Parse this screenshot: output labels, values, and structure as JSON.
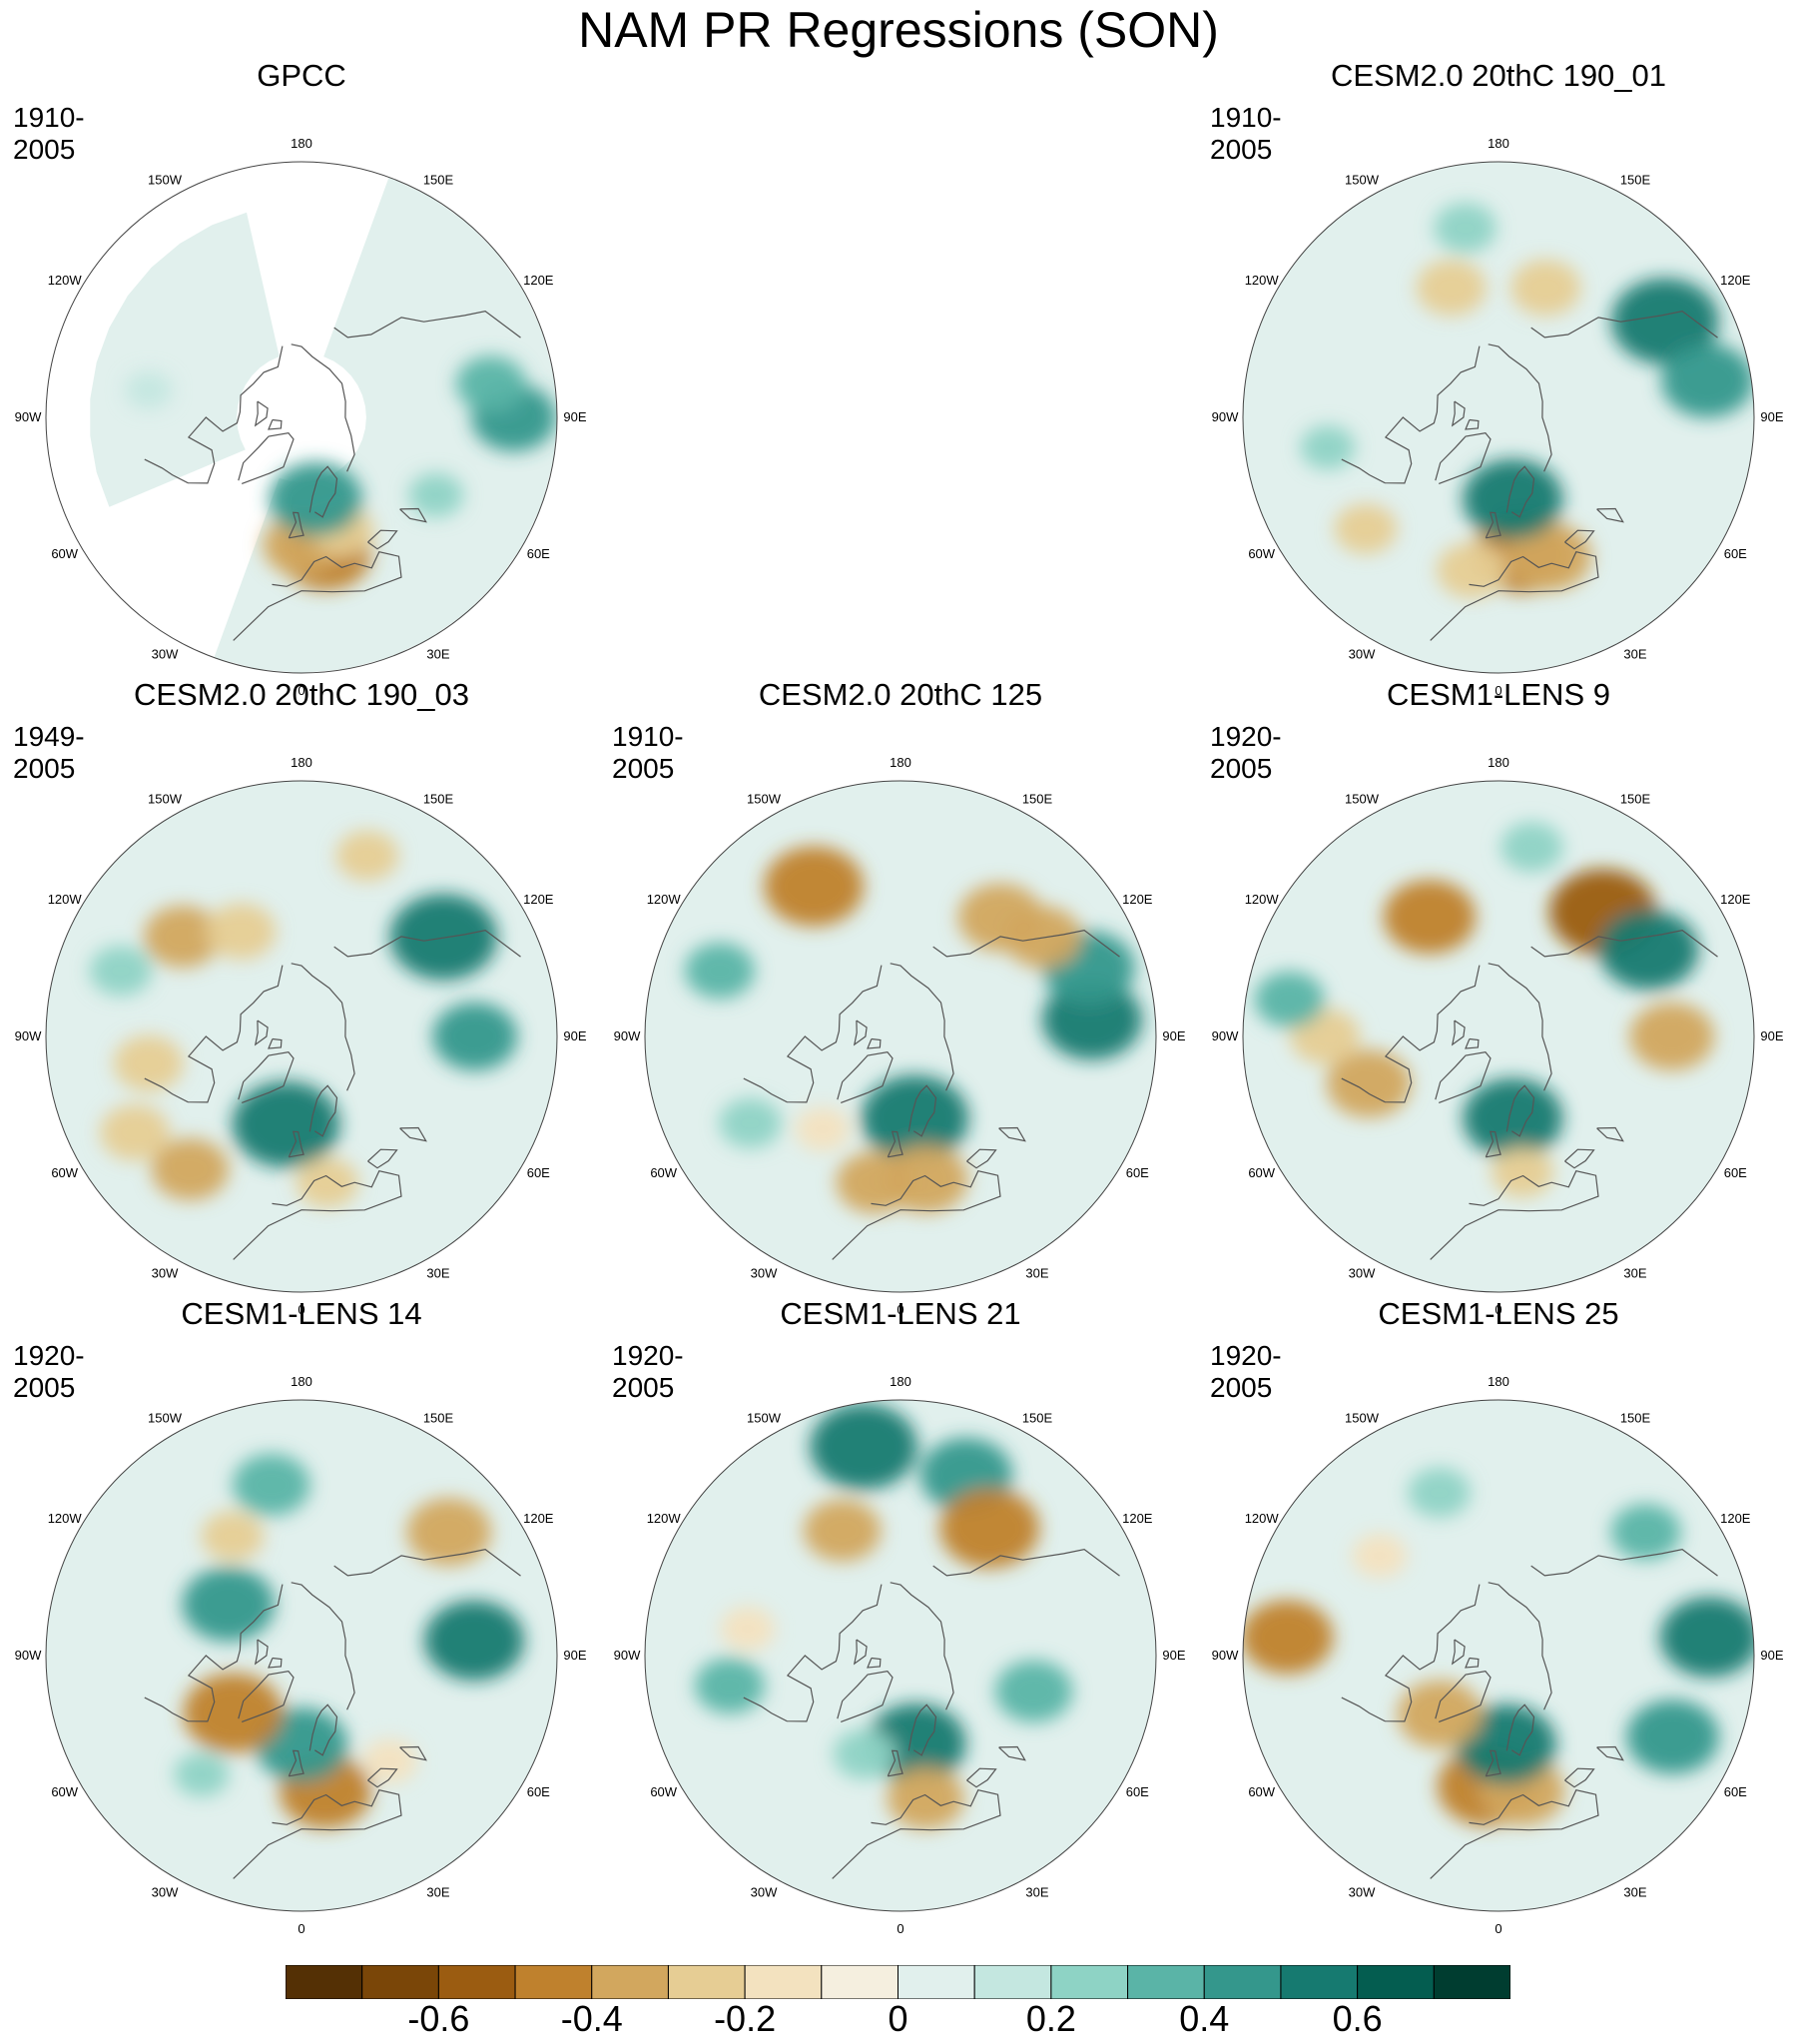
{
  "chart_data": {
    "type": "polar-stereographic contour map panels",
    "title": "NAM PR Regressions (SON)",
    "variable": "precipitation regression onto NAM",
    "longitude_labels": [
      "180",
      "150E",
      "120E",
      "90E",
      "60E",
      "30E",
      "0",
      "30W",
      "60W",
      "90W",
      "120W",
      "150W"
    ],
    "panels": [
      {
        "id": "gpcc",
        "title": "GPCC",
        "period": "1910-2005",
        "land_only": true,
        "features": [
          {
            "lon": 10,
            "lat": 45,
            "value": -0.45
          },
          {
            "lon": 0,
            "lat": 48,
            "value": -0.35
          },
          {
            "lon": 20,
            "lat": 50,
            "value": -0.25
          },
          {
            "lon": 10,
            "lat": 62,
            "value": 0.45
          },
          {
            "lon": 90,
            "lat": 25,
            "value": 0.4
          },
          {
            "lon": 100,
            "lat": 30,
            "value": 0.3
          },
          {
            "lon": 60,
            "lat": 40,
            "value": 0.2
          },
          {
            "lon": -100,
            "lat": 40,
            "value": 0.15
          }
        ]
      },
      {
        "id": "cesm2-190-01",
        "title": "CESM2.0 20thC 190_01",
        "period": "1910-2005",
        "land_only": false,
        "features": [
          {
            "lon": 10,
            "lat": 45,
            "value": -0.5
          },
          {
            "lon": 20,
            "lat": 42,
            "value": -0.4
          },
          {
            "lon": -10,
            "lat": 40,
            "value": -0.3
          },
          {
            "lon": 10,
            "lat": 62,
            "value": 0.5
          },
          {
            "lon": -160,
            "lat": 45,
            "value": -0.3
          },
          {
            "lon": 120,
            "lat": 30,
            "value": 0.55
          },
          {
            "lon": 100,
            "lat": 25,
            "value": 0.45
          },
          {
            "lon": 160,
            "lat": 45,
            "value": -0.3
          },
          {
            "lon": -170,
            "lat": 30,
            "value": 0.25
          },
          {
            "lon": -80,
            "lat": 35,
            "value": 0.2
          },
          {
            "lon": -50,
            "lat": 35,
            "value": -0.25
          }
        ]
      },
      {
        "id": "cesm2-190-03",
        "title": "CESM2.0 20thC 190_03",
        "period": "1949-2005",
        "land_only": false,
        "features": [
          {
            "lon": -10,
            "lat": 60,
            "value": 0.55
          },
          {
            "lon": -40,
            "lat": 35,
            "value": -0.35
          },
          {
            "lon": -60,
            "lat": 30,
            "value": -0.3
          },
          {
            "lon": 10,
            "lat": 42,
            "value": -0.25
          },
          {
            "lon": 125,
            "lat": 35,
            "value": 0.55
          },
          {
            "lon": -130,
            "lat": 40,
            "value": -0.35
          },
          {
            "lon": -150,
            "lat": 50,
            "value": -0.3
          },
          {
            "lon": 90,
            "lat": 35,
            "value": 0.4
          },
          {
            "lon": -80,
            "lat": 40,
            "value": -0.3
          },
          {
            "lon": -110,
            "lat": 30,
            "value": 0.25
          },
          {
            "lon": 160,
            "lat": 30,
            "value": -0.25
          }
        ]
      },
      {
        "id": "cesm2-125",
        "title": "CESM2.0 20thC 125",
        "period": "1910-2005",
        "land_only": false,
        "features": [
          {
            "lon": 10,
            "lat": 62,
            "value": 0.55
          },
          {
            "lon": 10,
            "lat": 43,
            "value": -0.4
          },
          {
            "lon": -10,
            "lat": 42,
            "value": -0.35
          },
          {
            "lon": -150,
            "lat": 35,
            "value": -0.5
          },
          {
            "lon": 95,
            "lat": 30,
            "value": 0.5
          },
          {
            "lon": 110,
            "lat": 28,
            "value": 0.45
          },
          {
            "lon": 140,
            "lat": 40,
            "value": -0.4
          },
          {
            "lon": 125,
            "lat": 35,
            "value": -0.35
          },
          {
            "lon": -110,
            "lat": 30,
            "value": 0.3
          },
          {
            "lon": -60,
            "lat": 35,
            "value": 0.25
          },
          {
            "lon": -40,
            "lat": 50,
            "value": -0.2
          }
        ]
      },
      {
        "id": "lens-9",
        "title": "CESM1-LENS 9",
        "period": "1920-2005",
        "land_only": false,
        "features": [
          {
            "lon": 10,
            "lat": 62,
            "value": 0.5
          },
          {
            "lon": -150,
            "lat": 45,
            "value": -0.45
          },
          {
            "lon": 140,
            "lat": 38,
            "value": -0.55
          },
          {
            "lon": 120,
            "lat": 35,
            "value": 0.5
          },
          {
            "lon": -70,
            "lat": 45,
            "value": -0.4
          },
          {
            "lon": -90,
            "lat": 35,
            "value": -0.3
          },
          {
            "lon": 10,
            "lat": 45,
            "value": -0.25
          },
          {
            "lon": 90,
            "lat": 35,
            "value": -0.4
          },
          {
            "lon": -100,
            "lat": 25,
            "value": 0.3
          },
          {
            "lon": 170,
            "lat": 30,
            "value": 0.25
          }
        ]
      },
      {
        "id": "lens-14",
        "title": "CESM1-LENS 14",
        "period": "1920-2005",
        "land_only": false,
        "features": [
          {
            "lon": 10,
            "lat": 45,
            "value": -0.45
          },
          {
            "lon": 0,
            "lat": 60,
            "value": 0.45
          },
          {
            "lon": -50,
            "lat": 60,
            "value": -0.5
          },
          {
            "lon": 130,
            "lat": 30,
            "value": -0.4
          },
          {
            "lon": 95,
            "lat": 35,
            "value": 0.5
          },
          {
            "lon": -170,
            "lat": 35,
            "value": 0.35
          },
          {
            "lon": -150,
            "lat": 45,
            "value": -0.25
          },
          {
            "lon": -125,
            "lat": 60,
            "value": 0.45
          },
          {
            "lon": 40,
            "lat": 45,
            "value": -0.2
          },
          {
            "lon": -40,
            "lat": 40,
            "value": 0.2
          }
        ]
      },
      {
        "id": "lens-21",
        "title": "CESM1-LENS 21",
        "period": "1920-2005",
        "land_only": false,
        "features": [
          {
            "lon": 10,
            "lat": 60,
            "value": 0.5
          },
          {
            "lon": 10,
            "lat": 43,
            "value": -0.35
          },
          {
            "lon": -170,
            "lat": 25,
            "value": 0.55
          },
          {
            "lon": 160,
            "lat": 30,
            "value": 0.45
          },
          {
            "lon": -155,
            "lat": 45,
            "value": -0.35
          },
          {
            "lon": 145,
            "lat": 40,
            "value": -0.5
          },
          {
            "lon": 75,
            "lat": 45,
            "value": 0.35
          },
          {
            "lon": -80,
            "lat": 35,
            "value": 0.3
          },
          {
            "lon": -20,
            "lat": 55,
            "value": 0.25
          },
          {
            "lon": -100,
            "lat": 40,
            "value": -0.2
          }
        ]
      },
      {
        "id": "lens-25",
        "title": "CESM1-LENS 25",
        "period": "1920-2005",
        "land_only": false,
        "features": [
          {
            "lon": -5,
            "lat": 47,
            "value": -0.5
          },
          {
            "lon": 10,
            "lat": 45,
            "value": -0.4
          },
          {
            "lon": 5,
            "lat": 60,
            "value": 0.5
          },
          {
            "lon": -45,
            "lat": 62,
            "value": -0.4
          },
          {
            "lon": -95,
            "lat": 25,
            "value": -0.45
          },
          {
            "lon": 95,
            "lat": 25,
            "value": 0.5
          },
          {
            "lon": 65,
            "lat": 30,
            "value": 0.45
          },
          {
            "lon": 130,
            "lat": 30,
            "value": 0.3
          },
          {
            "lon": -160,
            "lat": 35,
            "value": 0.25
          },
          {
            "lon": -130,
            "lat": 40,
            "value": -0.2
          }
        ]
      }
    ],
    "colorbar": {
      "colors": [
        "#543005",
        "#7a4608",
        "#9b5c11",
        "#bf812d",
        "#d2a75e",
        "#e6cd94",
        "#f3e2bf",
        "#f5efdf",
        "#e1f0ed",
        "#c4e7e0",
        "#8ed3c5",
        "#5ab4a7",
        "#34978c",
        "#167a70",
        "#045d50",
        "#003d30"
      ],
      "tick_labels": [
        "-0.6",
        "-0.4",
        "-0.2",
        "0",
        "0.2",
        "0.4",
        "0.6"
      ],
      "tick_values": [
        -0.6,
        -0.4,
        -0.2,
        0,
        0.2,
        0.4,
        0.6
      ],
      "range": [
        -0.8,
        0.8
      ]
    }
  }
}
